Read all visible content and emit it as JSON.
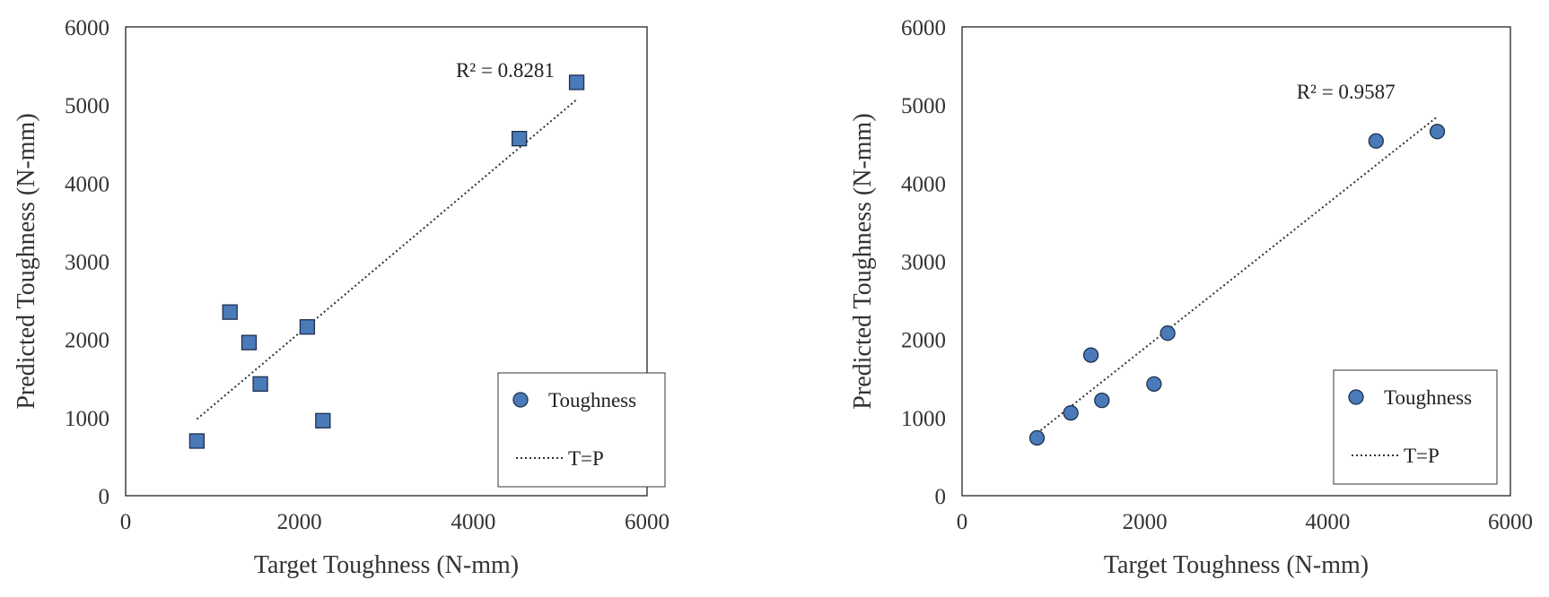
{
  "chart_data": [
    {
      "type": "scatter",
      "title": "",
      "xlabel": "Target Toughness (N-mm)",
      "ylabel": "Predicted Toughness (N-mm)",
      "xlim": [
        0,
        6000
      ],
      "ylim": [
        0,
        6000
      ],
      "xticks": [
        "0",
        "2000",
        "4000",
        "6000"
      ],
      "yticks": [
        "0",
        "1000",
        "2000",
        "3000",
        "4000",
        "5000",
        "6000"
      ],
      "marker": "square",
      "marker_color": "#4a7ab8",
      "series": [
        {
          "name": "Toughness",
          "points": [
            {
              "x": 820,
              "y": 700
            },
            {
              "x": 1200,
              "y": 2350
            },
            {
              "x": 1420,
              "y": 1960
            },
            {
              "x": 1550,
              "y": 1430
            },
            {
              "x": 2090,
              "y": 2160
            },
            {
              "x": 2270,
              "y": 960
            },
            {
              "x": 4530,
              "y": 4570
            },
            {
              "x": 5190,
              "y": 5290
            }
          ]
        }
      ],
      "trendline": {
        "name": "T=P",
        "x0": 820,
        "y0": 980,
        "x1": 5190,
        "y1": 5070
      },
      "annotation": "R² = 0.8281",
      "annotation_anchor": {
        "x": 3800,
        "y": 5360
      },
      "legend": {
        "position": "bottom-right",
        "entries": [
          "Toughness",
          "T=P"
        ]
      }
    },
    {
      "type": "scatter",
      "title": "",
      "xlabel": "Target Toughness (N-mm)",
      "ylabel": "Predicted Toughness (N-mm)",
      "xlim": [
        0,
        6000
      ],
      "ylim": [
        0,
        6000
      ],
      "xticks": [
        "0",
        "2000",
        "4000",
        "6000"
      ],
      "yticks": [
        "0",
        "1000",
        "2000",
        "3000",
        "4000",
        "5000",
        "6000"
      ],
      "marker": "circle",
      "marker_color": "#4a7ab8",
      "series": [
        {
          "name": "Toughness",
          "points": [
            {
              "x": 820,
              "y": 740
            },
            {
              "x": 1190,
              "y": 1060
            },
            {
              "x": 1410,
              "y": 1800
            },
            {
              "x": 1530,
              "y": 1220
            },
            {
              "x": 2100,
              "y": 1430
            },
            {
              "x": 2250,
              "y": 2080
            },
            {
              "x": 4530,
              "y": 4540
            },
            {
              "x": 5200,
              "y": 4660
            }
          ]
        }
      ],
      "trendline": {
        "name": "T=P",
        "x0": 820,
        "y0": 800,
        "x1": 5200,
        "y1": 4850
      },
      "annotation": "R² = 0.9587",
      "annotation_anchor": {
        "x": 3660,
        "y": 5080
      },
      "legend": {
        "position": "bottom-right",
        "entries": [
          "Toughness",
          "T=P"
        ]
      }
    }
  ]
}
